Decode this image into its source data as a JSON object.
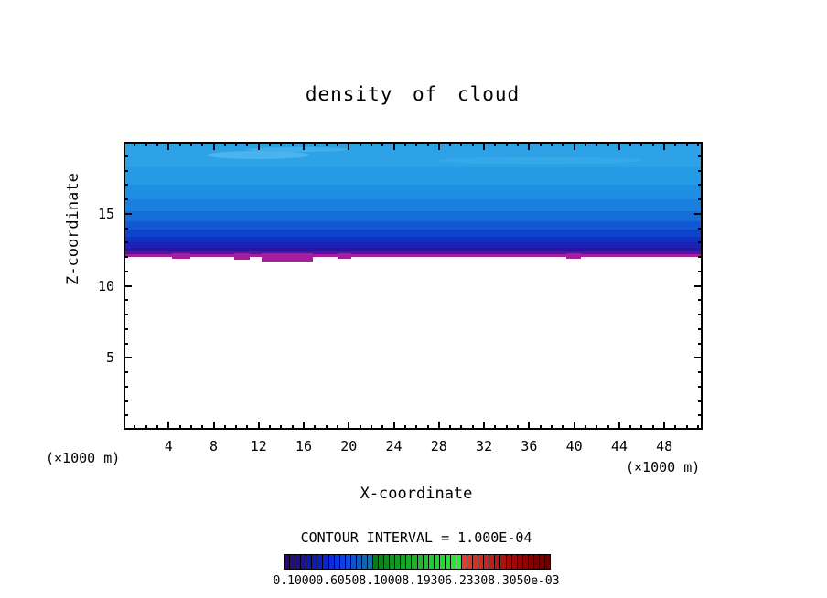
{
  "title": "density of cloud",
  "labels": {
    "x_axis": "X-coordinate",
    "z_axis": "Z-coordinate",
    "unit_left": "(×1000 m)",
    "unit_right": "(×1000 m)"
  },
  "contour_note": "CONTOUR INTERVAL = 1.000E-04",
  "colorbar_labels_overlapped": "0.10000.60508.10008.19306.23308.3050e-03",
  "chart_data": {
    "type": "heatmap",
    "title": "density of cloud",
    "xlabel": "X-coordinate (×1000 m)",
    "ylabel": "Z-coordinate (×1000 m)",
    "xlim": [
      0,
      51.4
    ],
    "ylim": [
      0,
      20
    ],
    "x_major_ticks": [
      4,
      8,
      12,
      16,
      20,
      24,
      28,
      32,
      36,
      40,
      44,
      48
    ],
    "x_minor_step": 1,
    "y_major_ticks": [
      5,
      10,
      15
    ],
    "y_minor_step": 1,
    "grid": false,
    "legend_position": "bottom",
    "contour_interval": "1.000E-04",
    "cloud_extent": {
      "x": [
        0,
        51.4
      ],
      "z_top": 20,
      "z_base": 12.0
    },
    "bands": [
      {
        "z_lo": 18.2,
        "z_hi": 19.97,
        "color": "#2da2e6"
      },
      {
        "z_lo": 17.0,
        "z_hi": 18.2,
        "color": "#259ae5"
      },
      {
        "z_lo": 16.0,
        "z_hi": 17.0,
        "color": "#1f8fe3"
      },
      {
        "z_lo": 15.2,
        "z_hi": 16.0,
        "color": "#1a80df"
      },
      {
        "z_lo": 14.5,
        "z_hi": 15.2,
        "color": "#156dd9"
      },
      {
        "z_lo": 13.9,
        "z_hi": 14.5,
        "color": "#1158d2"
      },
      {
        "z_lo": 13.4,
        "z_hi": 13.9,
        "color": "#0e43cb"
      },
      {
        "z_lo": 13.0,
        "z_hi": 13.4,
        "color": "#1430c2"
      },
      {
        "z_lo": 12.65,
        "z_hi": 13.0,
        "color": "#1f20b4"
      },
      {
        "z_lo": 12.4,
        "z_hi": 12.65,
        "color": "#2b149f"
      },
      {
        "z_lo": 12.2,
        "z_hi": 12.4,
        "color": "#58129c"
      },
      {
        "z_lo": 12.02,
        "z_hi": 12.2,
        "color": "#a51e9e"
      }
    ],
    "patches": [
      {
        "x0": 7.5,
        "x1": 16.5,
        "z": 18.8,
        "h": 0.55,
        "color": "#49b5ec"
      },
      {
        "x0": 11.0,
        "x1": 20.0,
        "z": 19.3,
        "h": 0.35,
        "color": "#41afe9"
      },
      {
        "x0": 28.0,
        "x1": 46.0,
        "z": 18.5,
        "h": 0.4,
        "color": "#36a9e8"
      }
    ],
    "notches": [
      {
        "x0": 4.3,
        "x1": 5.9,
        "z_bottom": 11.85
      },
      {
        "x0": 9.8,
        "x1": 11.2,
        "z_bottom": 11.8
      },
      {
        "x0": 12.3,
        "x1": 16.8,
        "z_bottom": 11.7
      },
      {
        "x0": 19.0,
        "x1": 20.2,
        "z_bottom": 11.88
      },
      {
        "x0": 39.3,
        "x1": 40.6,
        "z_bottom": 11.85
      }
    ],
    "notch_color": "#a51e9e",
    "colorbar_colors": [
      "#2a0a70",
      "#240d7e",
      "#1e108c",
      "#18139a",
      "#1416a8",
      "#101ab6",
      "#0c1ec4",
      "#0a24d0",
      "#0a2cda",
      "#0c36e0",
      "#0e40e2",
      "#1049da",
      "#1252cc",
      "#145bbe",
      "#1664b0",
      "#186da2",
      "#0c7a1c",
      "#0e821e",
      "#108a20",
      "#129222",
      "#149a24",
      "#16a226",
      "#18aa28",
      "#1ab22a",
      "#1cba2c",
      "#1ec22e",
      "#20ca30",
      "#22d232",
      "#24d834",
      "#26de36",
      "#28e438",
      "#2aea3a",
      "#e63c2c",
      "#de3628",
      "#d63024",
      "#ce2a20",
      "#c6241c",
      "#be1e18",
      "#b61814",
      "#ae1210",
      "#a60c0c",
      "#9e0808",
      "#960404",
      "#8e0202",
      "#860000",
      "#7c0000",
      "#720000",
      "#680000"
    ]
  }
}
